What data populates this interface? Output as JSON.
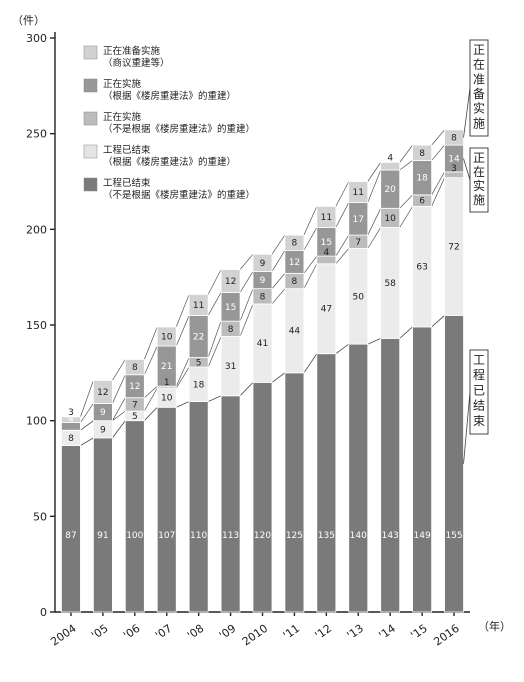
{
  "chart_data": {
    "type": "bar",
    "stacked": true,
    "ylabel": "（件）",
    "xlabel": "（年）",
    "ylim": [
      0,
      300
    ],
    "yticks": [
      0,
      50,
      100,
      150,
      200,
      250,
      300
    ],
    "grid": false,
    "legend_position": "top-left",
    "categories": [
      "2004",
      "'05",
      "'06",
      "'07",
      "'08",
      "'09",
      "2010",
      "'11",
      "'12",
      "'13",
      "'14",
      "'15",
      "2016"
    ],
    "series": [
      {
        "name": "工程已结束\n（不是根据《楼房重建法》的重建）",
        "color": "#7a7a7a",
        "values": [
          87,
          91,
          100,
          107,
          110,
          113,
          120,
          125,
          135,
          140,
          143,
          149,
          155
        ]
      },
      {
        "name": "工程已结束\n（根据《楼房重建法》的重建）",
        "color": "#e4e4e4",
        "values": [
          0,
          0,
          0,
          0,
          0,
          0,
          0,
          0,
          0,
          0,
          0,
          0,
          0
        ]
      },
      {
        "name": "正在实施\n（不是根据《楼房重建法》的重建）",
        "color": "#ebebeb",
        "values": [
          8,
          9,
          5,
          10,
          18,
          31,
          41,
          44,
          47,
          50,
          58,
          63,
          72
        ]
      },
      {
        "name": "正在实施\n（根据《楼房重建法》的重建）",
        "color": "#bcbcbc",
        "values": [
          0,
          0,
          7,
          1,
          5,
          8,
          8,
          8,
          4,
          7,
          10,
          6,
          3
        ]
      },
      {
        "name": "正在准备实施\n（商议重建等）",
        "color": "#979797",
        "values": [
          4,
          9,
          12,
          21,
          22,
          15,
          9,
          12,
          15,
          17,
          20,
          18,
          14
        ]
      },
      {
        "name": "",
        "color": "#d2d2d2",
        "values": [
          3,
          12,
          8,
          10,
          11,
          12,
          9,
          8,
          11,
          11,
          4,
          8,
          8
        ]
      }
    ],
    "legend": [
      {
        "line1": "正在准备实施",
        "line2": "（商议重建等）",
        "color": "#d2d2d2"
      },
      {
        "line1": "正在实施",
        "line2": "（根据《楼房重建法》的重建）",
        "color": "#979797"
      },
      {
        "line1": "正在实施",
        "line2": "（不是根据《楼房重建法》的重建）",
        "color": "#bcbcbc"
      },
      {
        "line1": "工程已结束",
        "line2": "（根据《楼房重建法》的重建）",
        "color": "#e4e4e4"
      },
      {
        "line1": "工程已结束",
        "line2": "（不是根据《楼房重建法》的重建）",
        "color": "#7a7a7a"
      }
    ],
    "side_labels": [
      {
        "text": "正在准备实施",
        "series_index": 5
      },
      {
        "text": "正在实施",
        "series_index": 4
      },
      {
        "text": "工程已结束",
        "series_index": 0
      }
    ]
  }
}
